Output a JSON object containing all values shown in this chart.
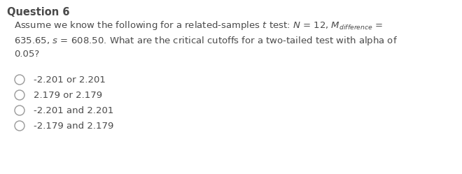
{
  "title": "Question 6",
  "options": [
    "-2.201 or 2.201",
    "2.179 or 2.179",
    "-2.201 and 2.201",
    "-2.179 and 2.179"
  ],
  "background_color": "#ffffff",
  "text_color": "#4a4a4a",
  "font_size": 9.5,
  "title_font_size": 10.5
}
